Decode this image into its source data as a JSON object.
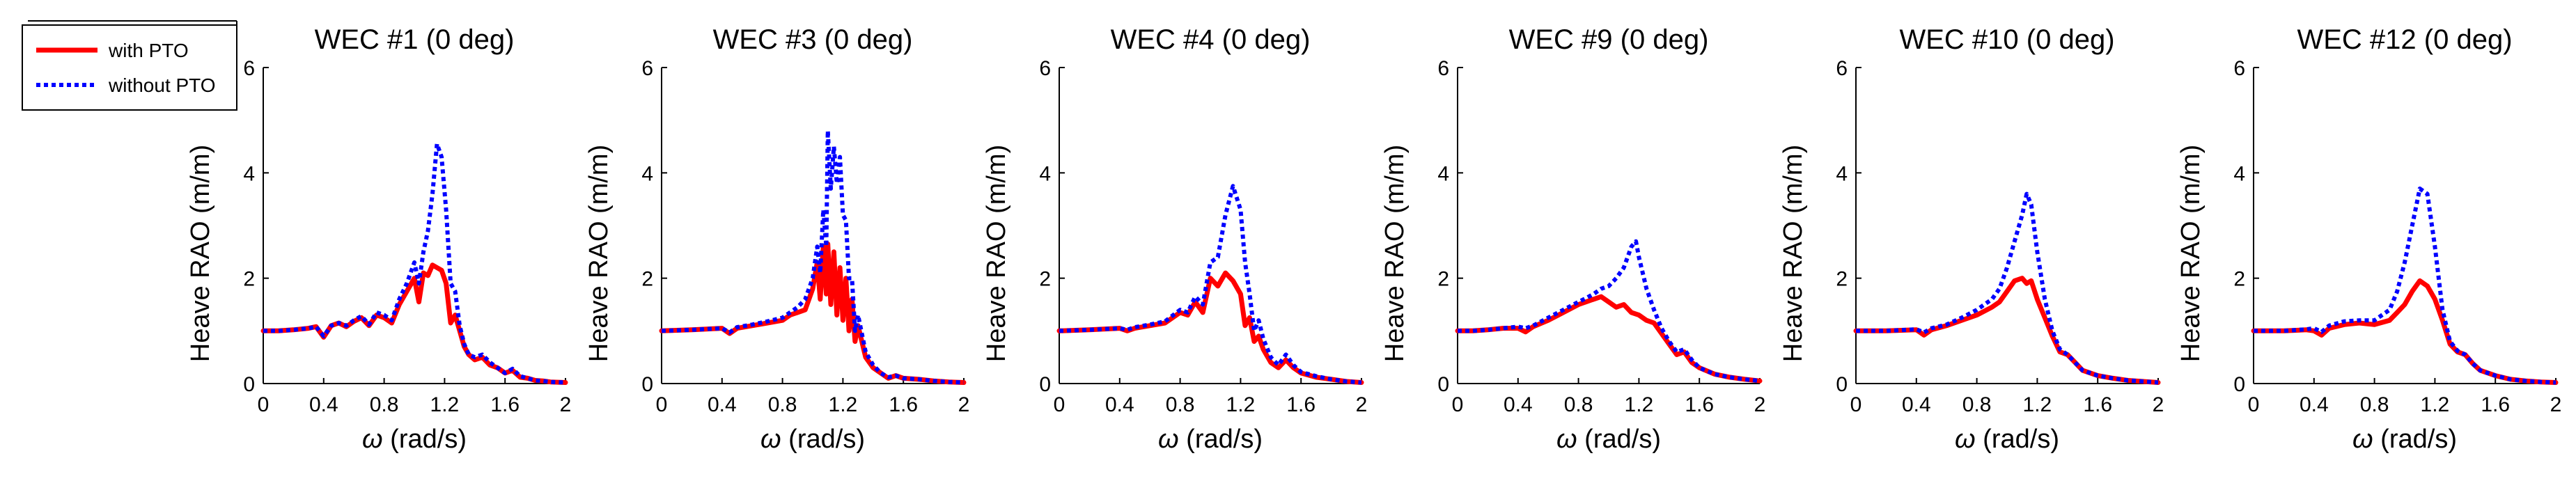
{
  "chart_data": {
    "type": "line",
    "legend": {
      "placement": "top-left",
      "entries": [
        {
          "name": "with PTO",
          "color": "#ff0000",
          "style": "solid"
        },
        {
          "name": "without PTO",
          "color": "#0000ff",
          "style": "dotted"
        }
      ]
    },
    "xlabel_symbol": "ω",
    "xlabel_unit": "(rad/s)",
    "ylabel": "Heave RAO (m/m)",
    "xlim": [
      0,
      2
    ],
    "ylim": [
      0,
      6
    ],
    "xticks": [
      "0",
      "0.4",
      "0.8",
      "1.2",
      "1.6",
      "2"
    ],
    "yticks": [
      "0",
      "2",
      "4",
      "6"
    ],
    "panels": [
      {
        "title": "WEC #1 (0 deg)",
        "series": [
          {
            "name": "with PTO",
            "x": [
              0,
              0.1,
              0.2,
              0.3,
              0.35,
              0.4,
              0.45,
              0.5,
              0.55,
              0.6,
              0.65,
              0.7,
              0.75,
              0.8,
              0.85,
              0.9,
              0.95,
              1.0,
              1.03,
              1.06,
              1.09,
              1.12,
              1.15,
              1.18,
              1.21,
              1.24,
              1.27,
              1.3,
              1.33,
              1.36,
              1.4,
              1.45,
              1.5,
              1.55,
              1.6,
              1.65,
              1.7,
              1.75,
              1.8,
              1.85,
              1.9,
              2.0
            ],
            "y": [
              1.0,
              1.0,
              1.02,
              1.05,
              1.08,
              0.88,
              1.1,
              1.15,
              1.08,
              1.18,
              1.25,
              1.1,
              1.3,
              1.25,
              1.15,
              1.5,
              1.75,
              2.0,
              1.55,
              2.1,
              2.05,
              2.25,
              2.2,
              2.15,
              1.9,
              1.15,
              1.3,
              1.0,
              0.7,
              0.55,
              0.45,
              0.5,
              0.35,
              0.3,
              0.2,
              0.25,
              0.12,
              0.1,
              0.06,
              0.05,
              0.03,
              0.02
            ]
          },
          {
            "name": "without PTO",
            "x": [
              0,
              0.1,
              0.2,
              0.3,
              0.35,
              0.4,
              0.45,
              0.5,
              0.55,
              0.6,
              0.65,
              0.7,
              0.75,
              0.8,
              0.85,
              0.9,
              0.95,
              1.0,
              1.03,
              1.06,
              1.09,
              1.12,
              1.15,
              1.18,
              1.21,
              1.24,
              1.27,
              1.3,
              1.33,
              1.36,
              1.4,
              1.45,
              1.5,
              1.55,
              1.6,
              1.65,
              1.7,
              1.75,
              1.8,
              1.85,
              1.9,
              2.0
            ],
            "y": [
              1.0,
              1.0,
              1.02,
              1.05,
              1.08,
              0.9,
              1.1,
              1.15,
              1.1,
              1.2,
              1.28,
              1.12,
              1.35,
              1.3,
              1.2,
              1.6,
              1.9,
              2.3,
              1.9,
              2.5,
              2.9,
              3.6,
              4.55,
              4.3,
              3.3,
              1.9,
              1.75,
              1.1,
              0.75,
              0.55,
              0.5,
              0.55,
              0.4,
              0.3,
              0.2,
              0.28,
              0.14,
              0.1,
              0.06,
              0.05,
              0.03,
              0.02
            ]
          }
        ]
      },
      {
        "title": "WEC #3 (0 deg)",
        "series": [
          {
            "name": "with PTO",
            "x": [
              0,
              0.2,
              0.4,
              0.45,
              0.5,
              0.6,
              0.7,
              0.8,
              0.85,
              0.9,
              0.95,
              1.0,
              1.03,
              1.05,
              1.07,
              1.09,
              1.1,
              1.12,
              1.14,
              1.16,
              1.18,
              1.2,
              1.22,
              1.24,
              1.26,
              1.28,
              1.3,
              1.35,
              1.4,
              1.45,
              1.5,
              1.55,
              1.6,
              1.7,
              1.8,
              1.9,
              2.0
            ],
            "y": [
              1.0,
              1.02,
              1.05,
              0.95,
              1.05,
              1.1,
              1.15,
              1.2,
              1.3,
              1.35,
              1.4,
              1.8,
              2.3,
              1.6,
              2.6,
              1.7,
              2.65,
              1.5,
              2.5,
              1.3,
              2.2,
              1.2,
              2.0,
              1.0,
              1.6,
              0.8,
              1.1,
              0.5,
              0.3,
              0.2,
              0.1,
              0.15,
              0.1,
              0.08,
              0.05,
              0.03,
              0.02
            ]
          },
          {
            "name": "without PTO",
            "x": [
              0,
              0.2,
              0.4,
              0.45,
              0.5,
              0.6,
              0.7,
              0.8,
              0.85,
              0.9,
              0.95,
              1.0,
              1.03,
              1.05,
              1.07,
              1.09,
              1.1,
              1.12,
              1.14,
              1.16,
              1.18,
              1.2,
              1.22,
              1.24,
              1.26,
              1.28,
              1.3,
              1.35,
              1.4,
              1.45,
              1.5,
              1.55,
              1.6,
              1.7,
              1.8,
              1.9,
              2.0
            ],
            "y": [
              1.0,
              1.02,
              1.05,
              0.97,
              1.07,
              1.12,
              1.18,
              1.25,
              1.35,
              1.45,
              1.6,
              2.0,
              2.6,
              2.1,
              3.3,
              2.6,
              4.8,
              3.7,
              4.5,
              3.8,
              4.3,
              3.2,
              3.1,
              2.0,
              2.0,
              1.0,
              1.3,
              0.6,
              0.35,
              0.2,
              0.12,
              0.15,
              0.1,
              0.08,
              0.05,
              0.03,
              0.02
            ]
          }
        ]
      },
      {
        "title": "WEC #4 (0 deg)",
        "series": [
          {
            "name": "with PTO",
            "x": [
              0,
              0.2,
              0.4,
              0.45,
              0.5,
              0.6,
              0.7,
              0.8,
              0.85,
              0.9,
              0.95,
              1.0,
              1.05,
              1.1,
              1.15,
              1.2,
              1.23,
              1.26,
              1.29,
              1.32,
              1.35,
              1.4,
              1.45,
              1.5,
              1.55,
              1.6,
              1.7,
              1.8,
              1.9,
              2.0
            ],
            "y": [
              1.0,
              1.02,
              1.05,
              1.0,
              1.05,
              1.1,
              1.15,
              1.35,
              1.3,
              1.55,
              1.35,
              2.0,
              1.85,
              2.1,
              1.95,
              1.7,
              1.1,
              1.25,
              0.8,
              0.9,
              0.65,
              0.4,
              0.3,
              0.45,
              0.3,
              0.2,
              0.12,
              0.08,
              0.04,
              0.02
            ]
          },
          {
            "name": "without PTO",
            "x": [
              0,
              0.2,
              0.4,
              0.45,
              0.5,
              0.6,
              0.7,
              0.8,
              0.85,
              0.9,
              0.95,
              1.0,
              1.05,
              1.1,
              1.15,
              1.2,
              1.23,
              1.26,
              1.29,
              1.32,
              1.35,
              1.4,
              1.45,
              1.5,
              1.55,
              1.6,
              1.7,
              1.8,
              1.9,
              2.0
            ],
            "y": [
              1.0,
              1.02,
              1.05,
              1.02,
              1.07,
              1.12,
              1.18,
              1.4,
              1.35,
              1.65,
              1.5,
              2.3,
              2.4,
              3.2,
              3.75,
              3.3,
              2.3,
              1.7,
              1.0,
              1.2,
              0.85,
              0.5,
              0.35,
              0.55,
              0.35,
              0.22,
              0.14,
              0.08,
              0.04,
              0.02
            ]
          }
        ]
      },
      {
        "title": "WEC #9 (0 deg)",
        "series": [
          {
            "name": "with PTO",
            "x": [
              0,
              0.1,
              0.2,
              0.3,
              0.4,
              0.45,
              0.5,
              0.6,
              0.7,
              0.8,
              0.85,
              0.9,
              0.95,
              1.0,
              1.05,
              1.1,
              1.15,
              1.2,
              1.25,
              1.3,
              1.35,
              1.4,
              1.45,
              1.5,
              1.55,
              1.6,
              1.7,
              1.8,
              1.9,
              2.0
            ],
            "y": [
              1.0,
              1.0,
              1.02,
              1.05,
              1.05,
              0.98,
              1.08,
              1.2,
              1.35,
              1.5,
              1.55,
              1.6,
              1.65,
              1.55,
              1.45,
              1.5,
              1.35,
              1.3,
              1.2,
              1.15,
              0.95,
              0.75,
              0.55,
              0.6,
              0.4,
              0.3,
              0.18,
              0.12,
              0.08,
              0.05
            ]
          },
          {
            "name": "without PTO",
            "x": [
              0,
              0.1,
              0.2,
              0.3,
              0.4,
              0.45,
              0.5,
              0.6,
              0.7,
              0.8,
              0.85,
              0.9,
              0.95,
              1.0,
              1.05,
              1.1,
              1.15,
              1.18,
              1.2,
              1.25,
              1.3,
              1.35,
              1.4,
              1.45,
              1.5,
              1.55,
              1.6,
              1.7,
              1.8,
              1.9,
              2.0
            ],
            "y": [
              1.0,
              1.0,
              1.02,
              1.05,
              1.08,
              1.05,
              1.1,
              1.25,
              1.4,
              1.55,
              1.62,
              1.7,
              1.8,
              1.85,
              2.0,
              2.2,
              2.6,
              2.7,
              2.4,
              1.8,
              1.4,
              1.05,
              0.8,
              0.6,
              0.65,
              0.45,
              0.3,
              0.18,
              0.12,
              0.08,
              0.05
            ]
          }
        ]
      },
      {
        "title": "WEC #10 (0 deg)",
        "series": [
          {
            "name": "with PTO",
            "x": [
              0,
              0.2,
              0.4,
              0.45,
              0.5,
              0.6,
              0.7,
              0.8,
              0.9,
              0.95,
              1.0,
              1.05,
              1.1,
              1.13,
              1.16,
              1.2,
              1.25,
              1.3,
              1.35,
              1.4,
              1.45,
              1.5,
              1.6,
              1.7,
              1.8,
              1.9,
              2.0
            ],
            "y": [
              1.0,
              1.0,
              1.02,
              0.92,
              1.02,
              1.1,
              1.2,
              1.3,
              1.45,
              1.55,
              1.75,
              1.95,
              2.0,
              1.9,
              1.95,
              1.6,
              1.25,
              0.9,
              0.6,
              0.55,
              0.4,
              0.25,
              0.15,
              0.1,
              0.06,
              0.04,
              0.02
            ]
          },
          {
            "name": "without PTO",
            "x": [
              0,
              0.2,
              0.4,
              0.45,
              0.5,
              0.6,
              0.7,
              0.8,
              0.9,
              0.95,
              1.0,
              1.05,
              1.1,
              1.13,
              1.16,
              1.2,
              1.25,
              1.3,
              1.35,
              1.4,
              1.45,
              1.5,
              1.6,
              1.7,
              1.8,
              1.9,
              2.0
            ],
            "y": [
              1.0,
              1.0,
              1.03,
              0.97,
              1.05,
              1.12,
              1.25,
              1.4,
              1.6,
              1.8,
              2.2,
              2.7,
              3.2,
              3.6,
              3.4,
              2.5,
              1.6,
              1.0,
              0.65,
              0.55,
              0.4,
              0.25,
              0.15,
              0.1,
              0.06,
              0.04,
              0.02
            ]
          }
        ]
      },
      {
        "title": "WEC #12 (0 deg)",
        "series": [
          {
            "name": "with PTO",
            "x": [
              0,
              0.2,
              0.35,
              0.4,
              0.45,
              0.5,
              0.6,
              0.7,
              0.8,
              0.9,
              0.95,
              1.0,
              1.05,
              1.1,
              1.15,
              1.2,
              1.25,
              1.3,
              1.35,
              1.4,
              1.45,
              1.5,
              1.6,
              1.7,
              1.8,
              1.9,
              2.0
            ],
            "y": [
              1.0,
              1.0,
              1.02,
              1.0,
              0.92,
              1.05,
              1.12,
              1.15,
              1.12,
              1.2,
              1.35,
              1.5,
              1.75,
              1.95,
              1.85,
              1.6,
              1.2,
              0.75,
              0.6,
              0.55,
              0.38,
              0.25,
              0.15,
              0.08,
              0.05,
              0.03,
              0.02
            ]
          },
          {
            "name": "without PTO",
            "x": [
              0,
              0.2,
              0.35,
              0.4,
              0.45,
              0.5,
              0.6,
              0.7,
              0.8,
              0.9,
              0.95,
              1.0,
              1.05,
              1.1,
              1.15,
              1.2,
              1.25,
              1.3,
              1.35,
              1.4,
              1.45,
              1.5,
              1.6,
              1.7,
              1.8,
              1.9,
              2.0
            ],
            "y": [
              1.0,
              1.0,
              1.03,
              1.05,
              0.98,
              1.1,
              1.18,
              1.2,
              1.2,
              1.4,
              1.75,
              2.3,
              3.0,
              3.7,
              3.6,
              2.6,
              1.4,
              0.8,
              0.62,
              0.55,
              0.38,
              0.25,
              0.15,
              0.08,
              0.05,
              0.03,
              0.02
            ]
          }
        ]
      }
    ]
  }
}
